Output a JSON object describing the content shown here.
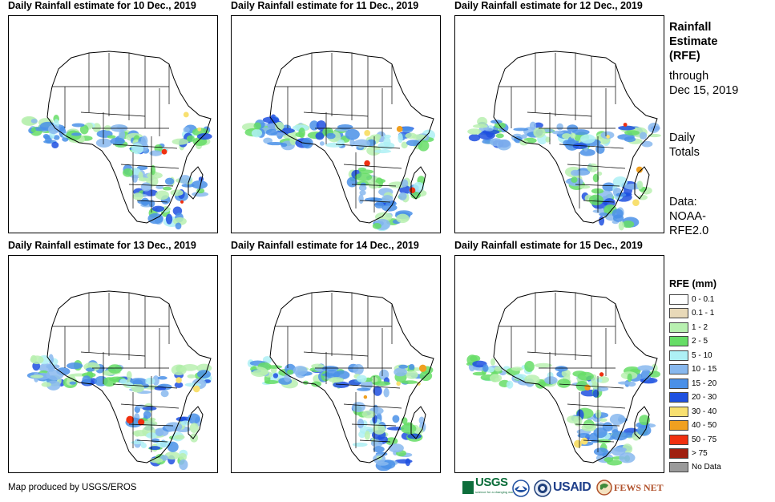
{
  "panels": [
    {
      "title": "Daily Rainfall estimate for 10 Dec., 2019"
    },
    {
      "title": "Daily Rainfall estimate for 11 Dec., 2019"
    },
    {
      "title": "Daily Rainfall estimate for 12 Dec., 2019"
    },
    {
      "title": "Daily Rainfall estimate for 13 Dec., 2019"
    },
    {
      "title": "Daily Rainfall estimate for 14 Dec., 2019"
    },
    {
      "title": "Daily Rainfall estimate for 15 Dec., 2019"
    }
  ],
  "side": {
    "heading_lines": [
      "Rainfall",
      "Estimate",
      "(RFE)"
    ],
    "through_lines": [
      "through",
      "Dec 15, 2019"
    ],
    "totals_lines": [
      "Daily",
      "Totals"
    ],
    "data_lines": [
      "Data:",
      "NOAA-",
      "RFE2.0"
    ]
  },
  "legend": {
    "title": "RFE (mm)",
    "items": [
      {
        "label": "0 - 0.1",
        "color": "#ffffff"
      },
      {
        "label": "0.1 - 1",
        "color": "#e8d9b8"
      },
      {
        "label": "1 - 2",
        "color": "#b8f0b0"
      },
      {
        "label": "2 - 5",
        "color": "#66dd66"
      },
      {
        "label": "5 - 10",
        "color": "#aef0f5"
      },
      {
        "label": "10 - 15",
        "color": "#88b8ee"
      },
      {
        "label": "15 - 20",
        "color": "#4a90e8"
      },
      {
        "label": "20 - 30",
        "color": "#1e50e0"
      },
      {
        "label": "30 - 40",
        "color": "#f8e070"
      },
      {
        "label": "40 - 50",
        "color": "#f0a020"
      },
      {
        "label": "50 - 75",
        "color": "#f03010"
      },
      {
        "label": "> 75",
        "color": "#a02010"
      },
      {
        "label": "No Data",
        "color": "#9a9a9a"
      }
    ]
  },
  "credit": "Map produced by USGS/EROS",
  "logos": {
    "usgs": "USGS",
    "usgs_tag": "science for a changing world",
    "usaid": "USAID",
    "fews": "FEWS NET"
  }
}
